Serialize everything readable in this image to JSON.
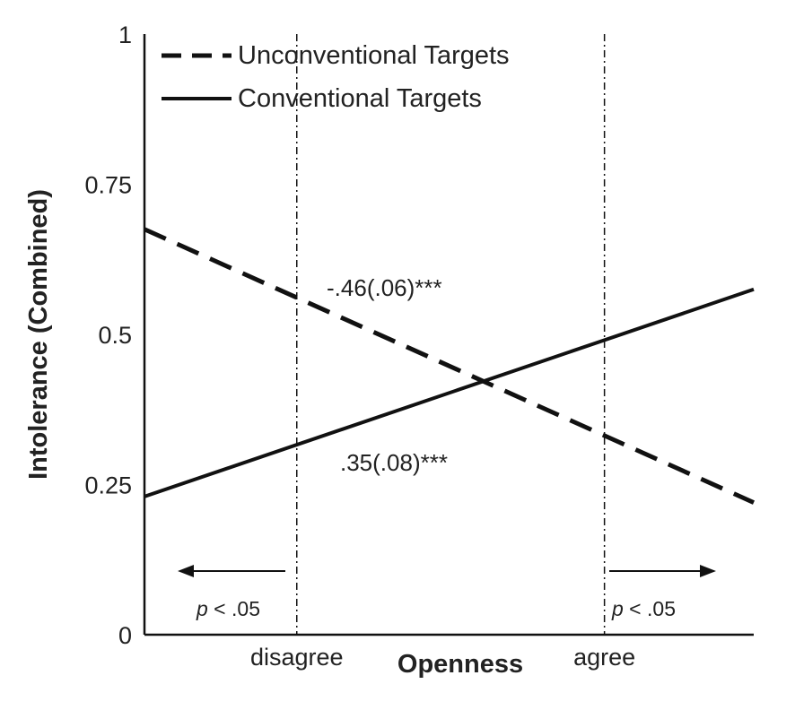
{
  "chart_data": {
    "type": "line",
    "title": "",
    "xlabel": "Openness",
    "ylabel": "Intolerance (Combined)",
    "ylim": [
      0,
      1
    ],
    "xlim": [
      0,
      1
    ],
    "yticks": [
      {
        "value": 0,
        "label": "0"
      },
      {
        "value": 0.25,
        "label": "0.25"
      },
      {
        "value": 0.5,
        "label": "0.5"
      },
      {
        "value": 0.75,
        "label": "0.75"
      },
      {
        "value": 1,
        "label": "1"
      }
    ],
    "xticks": [
      {
        "value": 0.25,
        "label": "disagree"
      },
      {
        "value": 0.755,
        "label": "agree"
      }
    ],
    "series": [
      {
        "name": "Unconventional Targets",
        "style": "dashed",
        "x": [
          0,
          1
        ],
        "y": [
          0.675,
          0.22
        ]
      },
      {
        "name": "Conventional Targets",
        "style": "solid",
        "x": [
          0,
          1
        ],
        "y": [
          0.23,
          0.575
        ]
      }
    ],
    "slope_labels": {
      "unconventional": ".46(.06)***",
      "unconventional_sign": "-",
      "conventional": ".35(.08)***"
    },
    "regions_of_significance": [
      {
        "boundary": 0.25,
        "direction": "left",
        "p_symbol": "p",
        "p_text": " < .05"
      },
      {
        "boundary": 0.755,
        "direction": "right",
        "p_symbol": "p",
        "p_text": " < .05"
      }
    ],
    "legend_position": "top-left",
    "grid": false,
    "colors": {
      "line": "#111111",
      "text": "#222222"
    }
  }
}
